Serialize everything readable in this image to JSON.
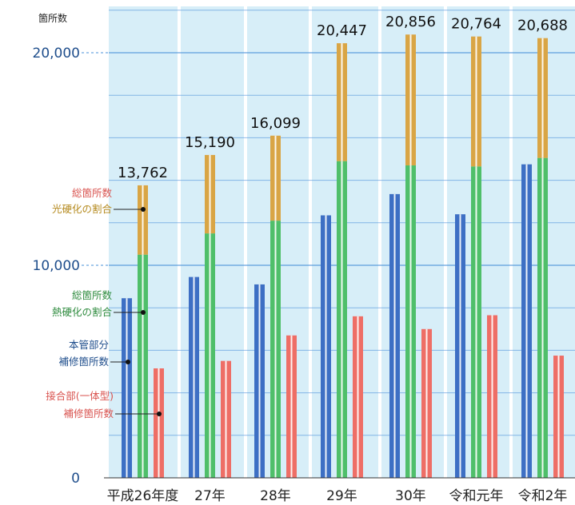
{
  "chart_data": {
    "type": "bar",
    "ylabel": "箇所数",
    "ylim": [
      0,
      22000
    ],
    "yticks": [
      {
        "value": 0,
        "label": "0"
      },
      {
        "value": 10000,
        "label": "10,000"
      },
      {
        "value": 20000,
        "label": "20,000"
      }
    ],
    "categories": [
      "平成26年度",
      "27年",
      "28年",
      "29年",
      "30年",
      "令和元年",
      "令和2年"
    ],
    "totals": [
      "13,762",
      "15,190",
      "16,099",
      "20,447",
      "20,856",
      "20,764",
      "20,688"
    ],
    "series": [
      {
        "name": "本管部分補修箇所数",
        "color": "#3d6fc4",
        "values": [
          8450,
          9450,
          9100,
          12350,
          13350,
          12400,
          14750
        ]
      },
      {
        "name": "総箇所数 熱硬化の割合",
        "color": "#4fbf6a",
        "values": [
          10500,
          11500,
          12100,
          14900,
          14700,
          14650,
          15050
        ]
      },
      {
        "name": "総箇所数 光硬化の割合",
        "color": "#d9a545",
        "values": [
          3262,
          3690,
          3999,
          5547,
          6156,
          6114,
          5638
        ]
      },
      {
        "name": "接合部(一体型)補修箇所数",
        "color": "#ee6e66",
        "values": [
          5150,
          5500,
          6700,
          7600,
          7000,
          7650,
          5750
        ]
      }
    ]
  },
  "legend": [
    {
      "line1": "総箇所数",
      "line2": "光硬化の割合",
      "color1": "#d9534f",
      "color2": "#b58a1e"
    },
    {
      "line1": "総箇所数",
      "line2": "熱硬化の割合",
      "color1": "#2e8b3e",
      "color2": "#2e8b3e"
    },
    {
      "line1": "本管部分",
      "line2": "補修箇所数",
      "color1": "#1f4e8c",
      "color2": "#1f4e8c"
    },
    {
      "line1": "接合部(一体型)",
      "line2": "補修箇所数",
      "color1": "#d9534f",
      "color2": "#d9534f"
    }
  ],
  "colors": {
    "background": "#d7eef8",
    "gridline": "#4a90d9",
    "column_gap": "#ffffff"
  }
}
